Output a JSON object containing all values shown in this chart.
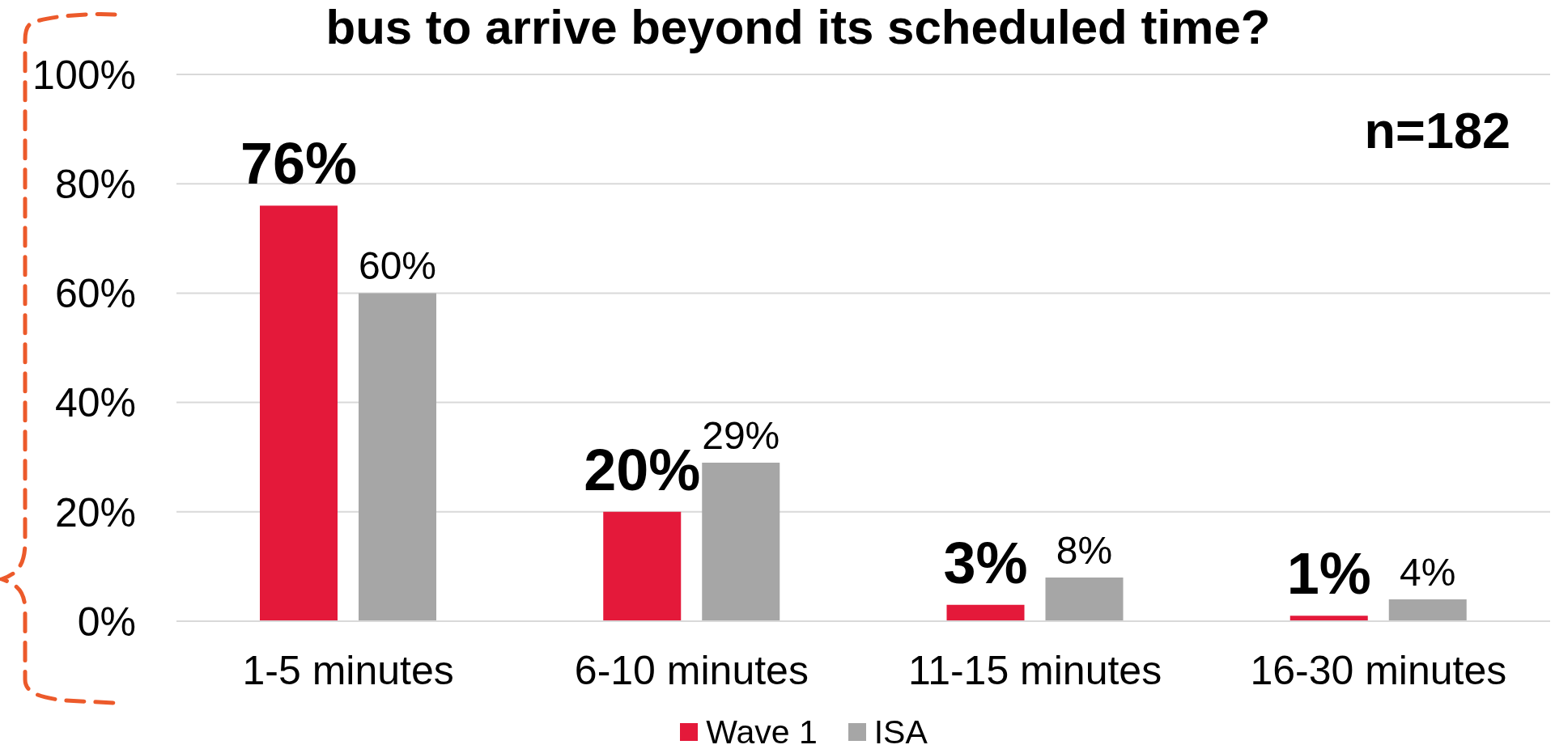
{
  "chart_data": {
    "type": "bar",
    "title": "bus to arrive beyond its scheduled time?",
    "categories": [
      "1-5 minutes",
      "6-10 minutes",
      "11-15 minutes",
      "16-30 minutes"
    ],
    "series": [
      {
        "name": "Wave 1",
        "color": "#e4193a",
        "values": [
          76,
          20,
          3,
          1
        ],
        "value_labels": [
          "76%",
          "20%",
          "3%",
          "1%"
        ]
      },
      {
        "name": "ISA",
        "color": "#a6a6a6",
        "values": [
          60,
          29,
          8,
          4
        ],
        "value_labels": [
          "60%",
          "29%",
          "8%",
          "4%"
        ]
      }
    ],
    "ylim": [
      0,
      100
    ],
    "yticks": [
      {
        "value": 0,
        "label": "0%"
      },
      {
        "value": 20,
        "label": "20%"
      },
      {
        "value": 40,
        "label": "40%"
      },
      {
        "value": 60,
        "label": "60%"
      },
      {
        "value": 80,
        "label": "80%"
      },
      {
        "value": 100,
        "label": "100%"
      }
    ],
    "grid": "y",
    "legend": "bottom",
    "annotations": [
      "n=182"
    ]
  }
}
